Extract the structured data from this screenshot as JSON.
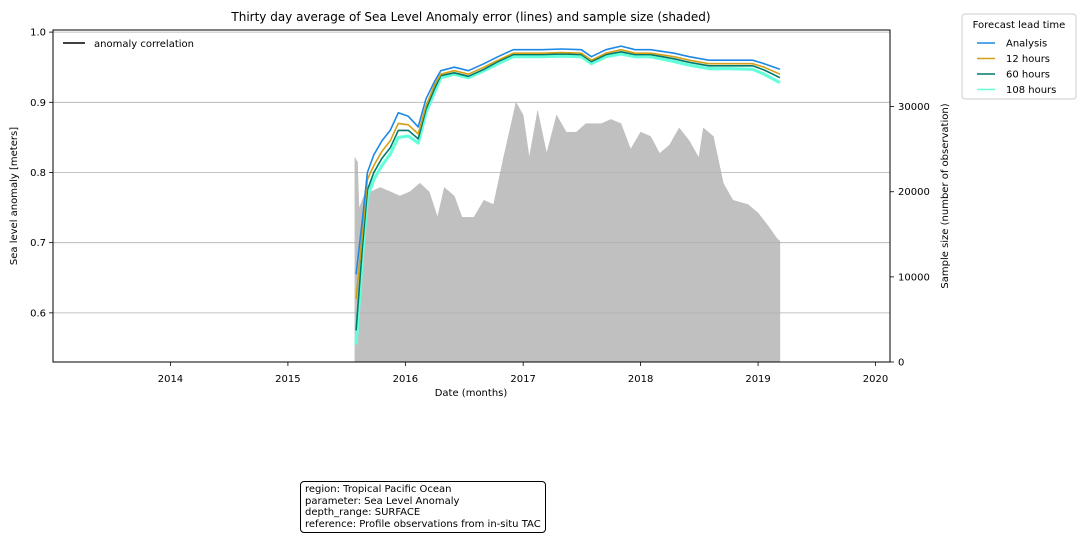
{
  "chart_data": {
    "type": "line",
    "title": "Thirty day average of Sea Level Anomaly error (lines) and sample size (shaded)",
    "xlabel": "Date (months)",
    "ylabel": "Sea level anomaly [meters]",
    "ylabel_right": "Sample size (number of observation)",
    "xlim": [
      "2013-01-01",
      "2020-02-15"
    ],
    "ylim": [
      0.53,
      1.003
    ],
    "ylim_right": [
      0,
      39000
    ],
    "x_ticks": [
      "2014",
      "2015",
      "2016",
      "2017",
      "2018",
      "2019",
      "2020"
    ],
    "y_ticks": [
      "0.6",
      "0.7",
      "0.8",
      "0.9",
      "1.0"
    ],
    "y_ticks_right": [
      "0",
      "10000",
      "20000",
      "30000"
    ],
    "grid": "horizontal",
    "inner_legend": {
      "label": "anomaly correlation",
      "color": "#000000",
      "placement": "upper left"
    },
    "legend_title": "Forecast lead time",
    "legend_placement": "outside right",
    "series": [
      {
        "name": "Analysis",
        "color": "#1e88e5",
        "points": [
          [
            "2015-08-01",
            0.655
          ],
          [
            "2015-08-20",
            0.73
          ],
          [
            "2015-09-05",
            0.8
          ],
          [
            "2015-09-25",
            0.825
          ],
          [
            "2015-10-20",
            0.845
          ],
          [
            "2015-11-15",
            0.86
          ],
          [
            "2015-12-10",
            0.885
          ],
          [
            "2016-01-10",
            0.88
          ],
          [
            "2016-02-10",
            0.865
          ],
          [
            "2016-03-05",
            0.905
          ],
          [
            "2016-04-01",
            0.93
          ],
          [
            "2016-04-20",
            0.945
          ],
          [
            "2016-06-01",
            0.95
          ],
          [
            "2016-07-15",
            0.945
          ],
          [
            "2016-09-01",
            0.955
          ],
          [
            "2016-10-15",
            0.965
          ],
          [
            "2016-12-01",
            0.975
          ],
          [
            "2017-01-15",
            0.975
          ],
          [
            "2017-03-01",
            0.975
          ],
          [
            "2017-05-01",
            0.976
          ],
          [
            "2017-07-01",
            0.975
          ],
          [
            "2017-08-01",
            0.965
          ],
          [
            "2017-09-15",
            0.975
          ],
          [
            "2017-11-01",
            0.98
          ],
          [
            "2017-12-15",
            0.975
          ],
          [
            "2018-02-01",
            0.975
          ],
          [
            "2018-04-15",
            0.97
          ],
          [
            "2018-06-01",
            0.965
          ],
          [
            "2018-08-01",
            0.96
          ],
          [
            "2018-10-01",
            0.96
          ],
          [
            "2018-12-15",
            0.96
          ],
          [
            "2019-01-20",
            0.955
          ],
          [
            "2019-03-10",
            0.947
          ]
        ]
      },
      {
        "name": "12 hours",
        "color": "#d4a017",
        "points": [
          [
            "2015-08-01",
            0.62
          ],
          [
            "2015-08-20",
            0.71
          ],
          [
            "2015-09-05",
            0.79
          ],
          [
            "2015-09-25",
            0.81
          ],
          [
            "2015-10-20",
            0.83
          ],
          [
            "2015-11-15",
            0.845
          ],
          [
            "2015-12-10",
            0.87
          ],
          [
            "2016-01-10",
            0.868
          ],
          [
            "2016-02-10",
            0.855
          ],
          [
            "2016-03-05",
            0.895
          ],
          [
            "2016-04-01",
            0.925
          ],
          [
            "2016-04-20",
            0.94
          ],
          [
            "2016-06-01",
            0.945
          ],
          [
            "2016-07-15",
            0.94
          ],
          [
            "2016-09-01",
            0.95
          ],
          [
            "2016-10-15",
            0.96
          ],
          [
            "2016-12-01",
            0.97
          ],
          [
            "2017-01-15",
            0.97
          ],
          [
            "2017-03-01",
            0.97
          ],
          [
            "2017-05-01",
            0.971
          ],
          [
            "2017-07-01",
            0.97
          ],
          [
            "2017-08-01",
            0.96
          ],
          [
            "2017-09-15",
            0.97
          ],
          [
            "2017-11-01",
            0.975
          ],
          [
            "2017-12-15",
            0.97
          ],
          [
            "2018-02-01",
            0.97
          ],
          [
            "2018-04-15",
            0.965
          ],
          [
            "2018-06-01",
            0.96
          ],
          [
            "2018-08-01",
            0.955
          ],
          [
            "2018-10-01",
            0.955
          ],
          [
            "2018-12-15",
            0.955
          ],
          [
            "2019-01-20",
            0.95
          ],
          [
            "2019-03-10",
            0.94
          ]
        ]
      },
      {
        "name": "60 hours",
        "color": "#00796b",
        "points": [
          [
            "2015-08-01",
            0.575
          ],
          [
            "2015-08-20",
            0.69
          ],
          [
            "2015-09-05",
            0.775
          ],
          [
            "2015-09-25",
            0.8
          ],
          [
            "2015-10-20",
            0.82
          ],
          [
            "2015-11-15",
            0.835
          ],
          [
            "2015-12-10",
            0.86
          ],
          [
            "2016-01-10",
            0.86
          ],
          [
            "2016-02-10",
            0.848
          ],
          [
            "2016-03-05",
            0.89
          ],
          [
            "2016-04-01",
            0.92
          ],
          [
            "2016-04-20",
            0.938
          ],
          [
            "2016-06-01",
            0.942
          ],
          [
            "2016-07-15",
            0.937
          ],
          [
            "2016-09-01",
            0.947
          ],
          [
            "2016-10-15",
            0.958
          ],
          [
            "2016-12-01",
            0.968
          ],
          [
            "2017-01-15",
            0.968
          ],
          [
            "2017-03-01",
            0.968
          ],
          [
            "2017-05-01",
            0.969
          ],
          [
            "2017-07-01",
            0.968
          ],
          [
            "2017-08-01",
            0.958
          ],
          [
            "2017-09-15",
            0.968
          ],
          [
            "2017-11-01",
            0.972
          ],
          [
            "2017-12-15",
            0.968
          ],
          [
            "2018-02-01",
            0.968
          ],
          [
            "2018-04-15",
            0.962
          ],
          [
            "2018-06-01",
            0.957
          ],
          [
            "2018-08-01",
            0.952
          ],
          [
            "2018-10-01",
            0.952
          ],
          [
            "2018-12-15",
            0.952
          ],
          [
            "2019-01-20",
            0.946
          ],
          [
            "2019-03-10",
            0.935
          ]
        ]
      },
      {
        "name": "108 hours",
        "color": "#64ffda",
        "points": [
          [
            "2015-08-01",
            0.555
          ],
          [
            "2015-08-20",
            0.675
          ],
          [
            "2015-09-05",
            0.765
          ],
          [
            "2015-09-25",
            0.79
          ],
          [
            "2015-10-20",
            0.81
          ],
          [
            "2015-11-15",
            0.826
          ],
          [
            "2015-12-10",
            0.85
          ],
          [
            "2016-01-10",
            0.852
          ],
          [
            "2016-02-10",
            0.842
          ],
          [
            "2016-03-05",
            0.885
          ],
          [
            "2016-04-01",
            0.915
          ],
          [
            "2016-04-20",
            0.935
          ],
          [
            "2016-06-01",
            0.94
          ],
          [
            "2016-07-15",
            0.935
          ],
          [
            "2016-09-01",
            0.945
          ],
          [
            "2016-10-15",
            0.955
          ],
          [
            "2016-12-01",
            0.965
          ],
          [
            "2017-01-15",
            0.965
          ],
          [
            "2017-03-01",
            0.965
          ],
          [
            "2017-05-01",
            0.966
          ],
          [
            "2017-07-01",
            0.965
          ],
          [
            "2017-08-01",
            0.955
          ],
          [
            "2017-09-15",
            0.965
          ],
          [
            "2017-11-01",
            0.969
          ],
          [
            "2017-12-15",
            0.965
          ],
          [
            "2018-02-01",
            0.965
          ],
          [
            "2018-04-15",
            0.958
          ],
          [
            "2018-06-01",
            0.953
          ],
          [
            "2018-08-01",
            0.948
          ],
          [
            "2018-10-01",
            0.948
          ],
          [
            "2018-12-15",
            0.947
          ],
          [
            "2019-01-20",
            0.94
          ],
          [
            "2019-03-10",
            0.928
          ]
        ]
      }
    ],
    "sample_size": {
      "color": "#c0c0c0",
      "points": [
        [
          "2015-07-28",
          24000
        ],
        [
          "2015-08-05",
          23500
        ],
        [
          "2015-08-10",
          18000
        ],
        [
          "2015-08-25",
          19500
        ],
        [
          "2015-09-15",
          20000
        ],
        [
          "2015-10-15",
          20500
        ],
        [
          "2015-11-15",
          20000
        ],
        [
          "2015-12-15",
          19500
        ],
        [
          "2016-01-15",
          20000
        ],
        [
          "2016-02-15",
          21000
        ],
        [
          "2016-03-15",
          20000
        ],
        [
          "2016-04-10",
          17000
        ],
        [
          "2016-05-01",
          20500
        ],
        [
          "2016-06-01",
          19500
        ],
        [
          "2016-06-25",
          17000
        ],
        [
          "2016-08-01",
          17000
        ],
        [
          "2016-09-01",
          19000
        ],
        [
          "2016-10-01",
          18500
        ],
        [
          "2016-11-01",
          24000
        ],
        [
          "2016-12-10",
          30500
        ],
        [
          "2017-01-01",
          29000
        ],
        [
          "2017-01-20",
          24000
        ],
        [
          "2017-02-15",
          29500
        ],
        [
          "2017-03-15",
          24500
        ],
        [
          "2017-04-15",
          29000
        ],
        [
          "2017-05-15",
          27000
        ],
        [
          "2017-06-15",
          27000
        ],
        [
          "2017-07-15",
          28000
        ],
        [
          "2017-09-01",
          28000
        ],
        [
          "2017-10-01",
          28500
        ],
        [
          "2017-11-01",
          28000
        ],
        [
          "2017-12-01",
          25000
        ],
        [
          "2018-01-01",
          27000
        ],
        [
          "2018-02-01",
          26500
        ],
        [
          "2018-03-01",
          24500
        ],
        [
          "2018-04-01",
          25500
        ],
        [
          "2018-05-01",
          27500
        ],
        [
          "2018-06-01",
          26000
        ],
        [
          "2018-07-01",
          24000
        ],
        [
          "2018-07-15",
          27500
        ],
        [
          "2018-08-15",
          26500
        ],
        [
          "2018-09-15",
          21000
        ],
        [
          "2018-10-15",
          19000
        ],
        [
          "2018-12-01",
          18500
        ],
        [
          "2019-01-01",
          17500
        ],
        [
          "2019-02-01",
          16000
        ],
        [
          "2019-03-01",
          14500
        ],
        [
          "2019-03-10",
          14200
        ]
      ]
    }
  },
  "info_box": {
    "line1": "region: Tropical Pacific Ocean",
    "line2": "parameter: Sea Level Anomaly",
    "line3": "depth_range: SURFACE",
    "line4": "reference: Profile observations from in-situ TAC"
  }
}
